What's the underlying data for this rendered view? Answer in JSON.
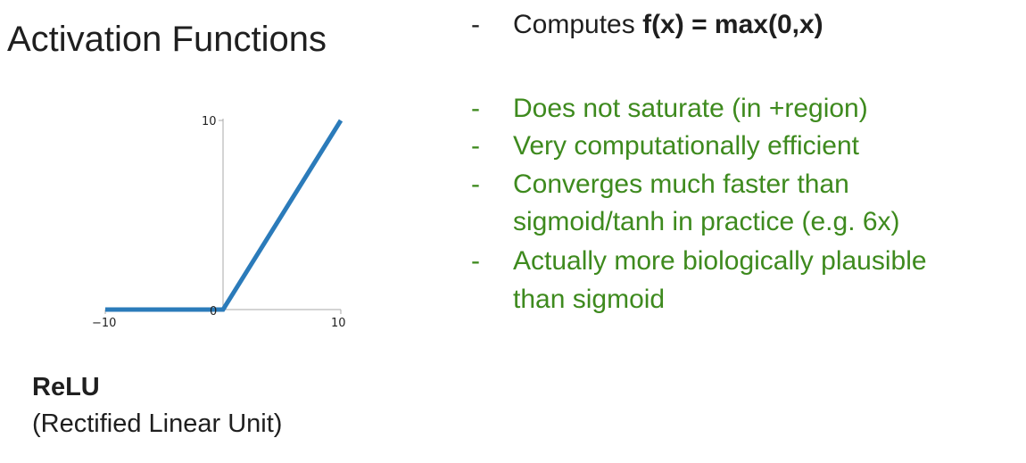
{
  "slide": {
    "title": "Activation Functions",
    "name": "ReLU",
    "subtitle": "(Rectified Linear Unit)"
  },
  "bullets": {
    "dash": "-",
    "first_prefix": "Computes ",
    "first_formula": "f(x) = max(0,x)",
    "b1": "Does not saturate (in +region)",
    "b2": "Very computationally efficient",
    "b3_line1": "Converges much faster than",
    "b3_line2": "sigmoid/tanh in practice (e.g. 6x)",
    "b4_line1": "Actually more biologically plausible",
    "b4_line2": "than sigmoid"
  },
  "colors": {
    "accent_green": "#3e8a1e",
    "line_blue": "#2b7bba"
  },
  "chart_data": {
    "type": "line",
    "title": "",
    "xlabel": "",
    "ylabel": "",
    "xlim": [
      -10,
      10
    ],
    "ylim": [
      0,
      10
    ],
    "x_ticks": [
      "−10",
      "10"
    ],
    "y_ticks": [
      "0",
      "10"
    ],
    "series": [
      {
        "x": [
          -10,
          0,
          10
        ],
        "y": [
          0,
          0,
          10
        ]
      }
    ],
    "grid": false,
    "legend": "none"
  }
}
